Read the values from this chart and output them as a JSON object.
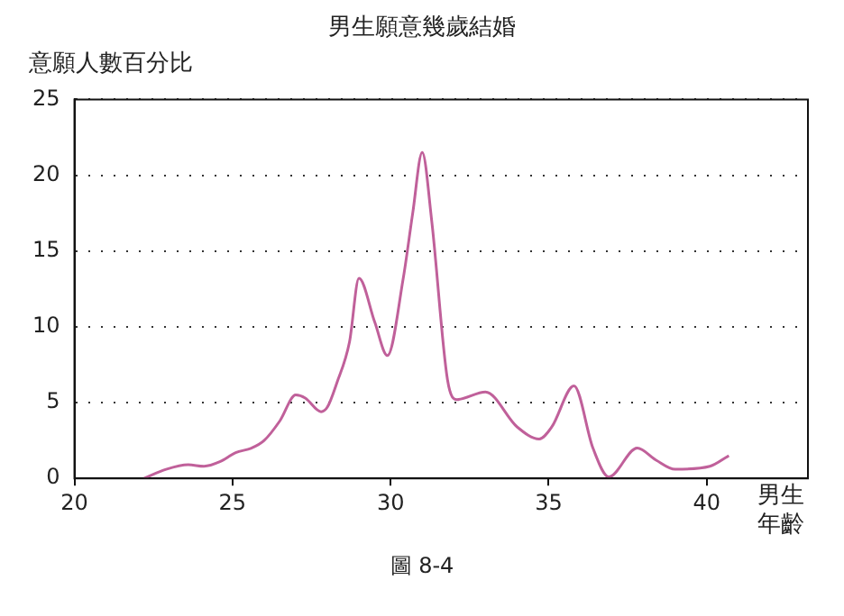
{
  "chart_data": {
    "type": "line",
    "title": "男生願意幾歲結婚",
    "ylabel": "意願人數百分比",
    "xlabel": "男生年齡",
    "annotations": [
      "圖 8-4"
    ],
    "x": [
      22.2,
      22.9,
      23.6,
      24.1,
      24.6,
      25.1,
      25.6,
      26.0,
      26.5,
      27.0,
      27.3,
      27.8,
      28.0,
      28.3,
      28.7,
      29.0,
      29.5,
      29.9,
      30.4,
      30.7,
      31.0,
      31.3,
      31.8,
      32.1,
      33.0,
      34.0,
      34.7,
      35.1,
      35.8,
      36.4,
      36.9,
      37.8,
      38.4,
      39.0,
      40.1,
      40.7
    ],
    "series": [
      {
        "color": "#c0609a",
        "values": [
          0,
          0.6,
          0.9,
          0.8,
          1.1,
          1.7,
          2.0,
          2.5,
          3.8,
          5.5,
          5.3,
          4.4,
          4.7,
          6.3,
          9.0,
          13.2,
          10.3,
          8.1,
          13.2,
          17.5,
          21.5,
          17,
          6.5,
          5.2,
          5.7,
          3.4,
          2.6,
          3.4,
          6.1,
          2.0,
          0.1,
          2.0,
          1.2,
          0.6,
          0.8,
          1.5
        ]
      }
    ],
    "xlim": [
      20,
      43.2
    ],
    "xticks": [
      20,
      25,
      30,
      35,
      40
    ],
    "ylim": [
      0,
      25
    ],
    "yticks": [
      0,
      5,
      10,
      15,
      20,
      25
    ],
    "grid": "y",
    "legend": false,
    "marker": "none",
    "line_style": "solid"
  }
}
